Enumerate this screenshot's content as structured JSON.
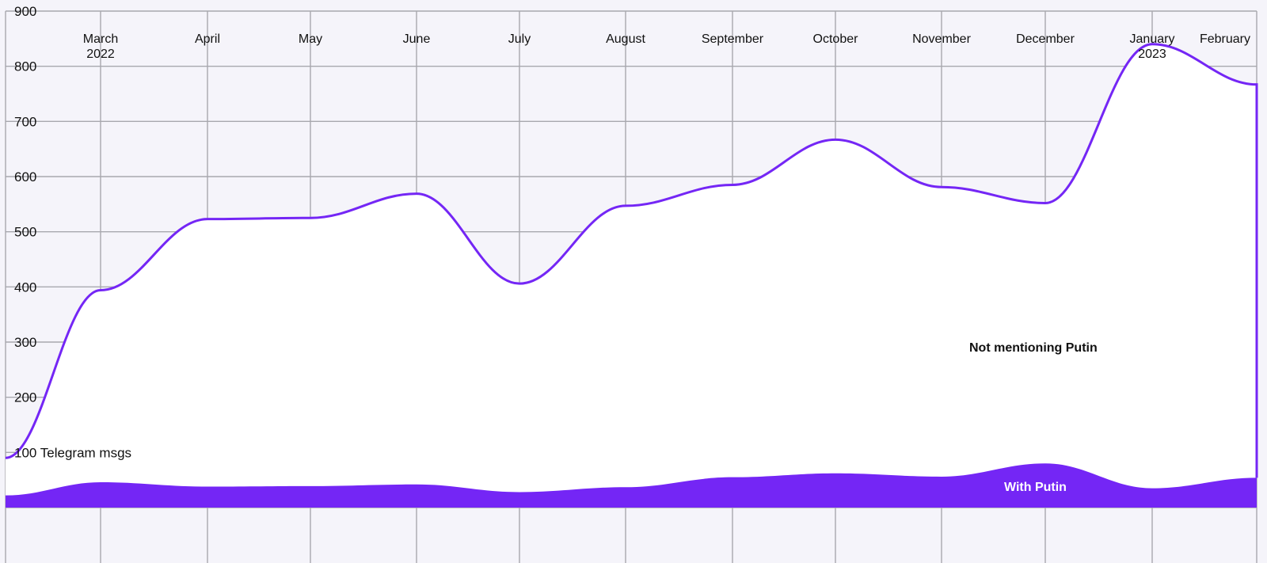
{
  "chart_data": {
    "type": "area",
    "title": "",
    "xlabel": "",
    "ylabel": "",
    "ylim": [
      0,
      900
    ],
    "y_ticks": [
      "900",
      "800",
      "700",
      "600",
      "500",
      "400",
      "300",
      "200",
      "100 Telegram msgs"
    ],
    "y_tick_values": [
      900,
      800,
      700,
      600,
      500,
      400,
      300,
      200,
      100
    ],
    "months": [
      {
        "label": "March",
        "year": "2022"
      },
      {
        "label": "April",
        "year": ""
      },
      {
        "label": "May",
        "year": ""
      },
      {
        "label": "June",
        "year": ""
      },
      {
        "label": "July",
        "year": ""
      },
      {
        "label": "August",
        "year": ""
      },
      {
        "label": "September",
        "year": ""
      },
      {
        "label": "October",
        "year": ""
      },
      {
        "label": "November",
        "year": ""
      },
      {
        "label": "December",
        "year": ""
      },
      {
        "label": "January",
        "year": "2023"
      },
      {
        "label": "February",
        "year": ""
      }
    ],
    "x": [
      "2022-02-24",
      "2022-03",
      "2022-04",
      "2022-05",
      "2022-06",
      "2022-07",
      "2022-08",
      "2022-09",
      "2022-10",
      "2022-11",
      "2022-12",
      "2023-01",
      "2023-02"
    ],
    "series": [
      {
        "name": "Not mentioning Putin",
        "values": [
          68,
          348,
          485,
          486,
          527,
          378,
          510,
          530,
          605,
          525,
          472,
          805,
          713
        ]
      },
      {
        "name": "With Putin",
        "values": [
          22,
          46,
          38,
          39,
          42,
          28,
          37,
          55,
          62,
          56,
          80,
          35,
          54
        ]
      }
    ],
    "grid": true,
    "colors": {
      "total_line": "#7426f5",
      "with_putin_fill": "#7426f5",
      "not_mentioning_fill": "#ffffff",
      "background": "#f5f4fa",
      "grid": "#a8a8ae"
    }
  }
}
